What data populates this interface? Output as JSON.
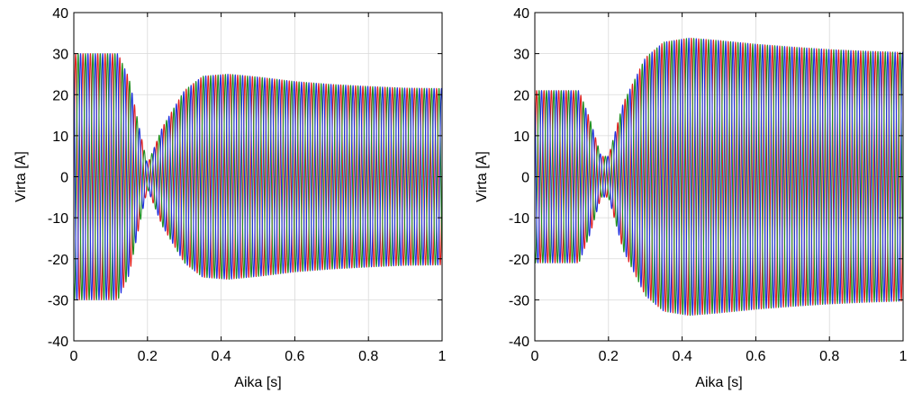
{
  "chart_data": [
    {
      "type": "line",
      "xlabel": "Aika [s]",
      "ylabel": "Virta [A]",
      "xlim": [
        0,
        1
      ],
      "ylim": [
        -40,
        40
      ],
      "xticks": [
        0,
        0.2,
        0.4,
        0.6,
        0.8,
        1
      ],
      "xtick_labels": [
        "0",
        "0.2",
        "0.4",
        "0.6",
        "0.8",
        "1"
      ],
      "yticks": [
        -40,
        -30,
        -20,
        -10,
        0,
        10,
        20,
        30,
        40
      ],
      "ytick_labels": [
        "-40",
        "-30",
        "-20",
        "-10",
        "0",
        "10",
        "20",
        "30",
        "40"
      ],
      "grid": true,
      "legend": "none",
      "frequency_hz": 50,
      "envelope": {
        "t": [
          0,
          0.12,
          0.15,
          0.18,
          0.2,
          0.24,
          0.3,
          0.35,
          0.42,
          0.5,
          0.6,
          0.7,
          0.8,
          0.9,
          1.0
        ],
        "amplitude": [
          30,
          30,
          24,
          11,
          3,
          12,
          21,
          24.5,
          25,
          24.3,
          23.2,
          22.5,
          22,
          21.6,
          21.5
        ]
      },
      "series": [
        {
          "color": "#e02020",
          "phase_deg": 0
        },
        {
          "color": "#1f8f1f",
          "phase_deg": -120
        },
        {
          "color": "#1f2fe0",
          "phase_deg": 120
        }
      ]
    },
    {
      "type": "line",
      "xlabel": "Aika [s]",
      "ylabel": "Virta [A]",
      "xlim": [
        0,
        1
      ],
      "ylim": [
        -40,
        40
      ],
      "xticks": [
        0,
        0.2,
        0.4,
        0.6,
        0.8,
        1
      ],
      "xtick_labels": [
        "0",
        "0.2",
        "0.4",
        "0.6",
        "0.8",
        "1"
      ],
      "yticks": [
        -40,
        -30,
        -20,
        -10,
        0,
        10,
        20,
        30,
        40
      ],
      "ytick_labels": [
        "-40",
        "-30",
        "-20",
        "-10",
        "0",
        "10",
        "20",
        "30",
        "40"
      ],
      "grid": true,
      "legend": "none",
      "frequency_hz": 50,
      "envelope": {
        "t": [
          0,
          0.12,
          0.15,
          0.18,
          0.2,
          0.24,
          0.3,
          0.35,
          0.42,
          0.5,
          0.6,
          0.7,
          0.8,
          0.9,
          1.0
        ],
        "amplitude": [
          21,
          21,
          14,
          5,
          5,
          18,
          29,
          32.8,
          33.8,
          33.2,
          32.3,
          31.6,
          31,
          30.6,
          30.3
        ]
      },
      "series": [
        {
          "color": "#e02020",
          "phase_deg": 0
        },
        {
          "color": "#1f8f1f",
          "phase_deg": -120
        },
        {
          "color": "#1f2fe0",
          "phase_deg": 120
        }
      ]
    }
  ]
}
